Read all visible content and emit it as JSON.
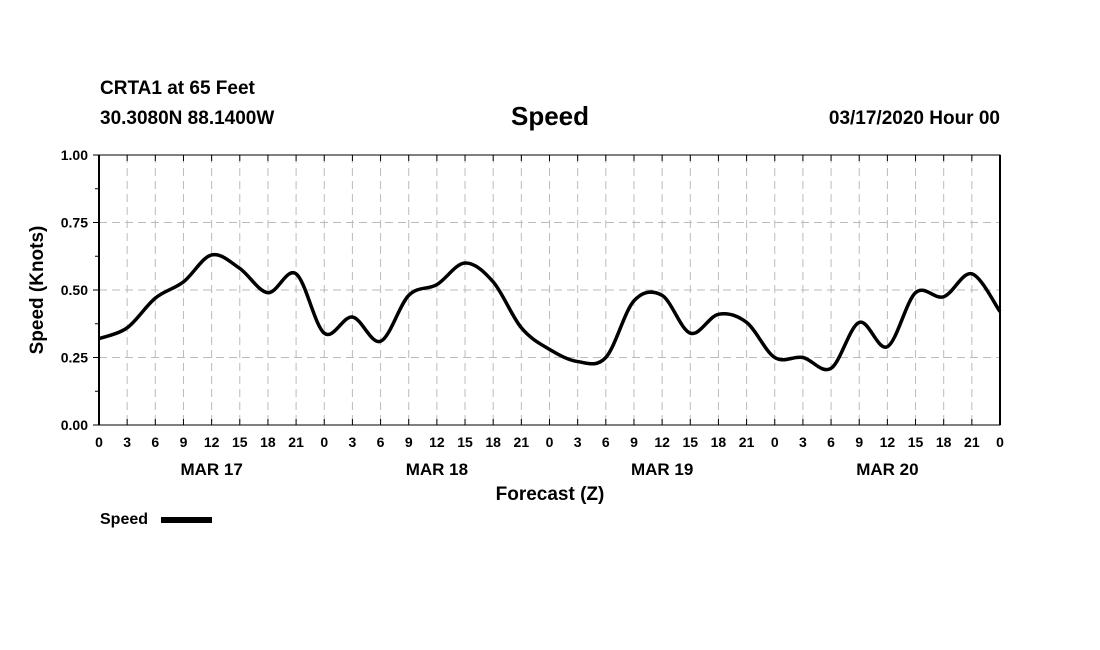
{
  "header": {
    "station": "CRTA1 at 65 Feet",
    "location": "30.3080N 88.1400W",
    "title": "Speed",
    "date": "03/17/2020 Hour 00"
  },
  "chart_data": {
    "type": "line",
    "title": "Speed",
    "xlabel": "Forecast (Z)",
    "ylabel": "Speed (Knots)",
    "ylim": [
      0,
      1
    ],
    "xlim": [
      0,
      96
    ],
    "grid": true,
    "yticks": [
      "0.00",
      "0.25",
      "0.50",
      "0.75",
      "1.00"
    ],
    "ytick_values": [
      0,
      0.25,
      0.5,
      0.75,
      1.0
    ],
    "xtick_labels": [
      "0",
      "3",
      "6",
      "9",
      "12",
      "15",
      "18",
      "21",
      "0",
      "3",
      "6",
      "9",
      "12",
      "15",
      "18",
      "21",
      "0",
      "3",
      "6",
      "9",
      "12",
      "15",
      "18",
      "21",
      "0",
      "3",
      "6",
      "9",
      "12",
      "15",
      "18",
      "21",
      "0"
    ],
    "day_labels": [
      {
        "label": "MAR 17",
        "hour": 12
      },
      {
        "label": "MAR 18",
        "hour": 36
      },
      {
        "label": "MAR 19",
        "hour": 60
      },
      {
        "label": "MAR 20",
        "hour": 84
      }
    ],
    "legend": {
      "label": "Speed",
      "placement": "bottom-left"
    },
    "series": [
      {
        "name": "Speed",
        "color": "#000000",
        "x": [
          0,
          3,
          6,
          9,
          12,
          15,
          18,
          21,
          24,
          27,
          30,
          33,
          36,
          39,
          42,
          45,
          48,
          51,
          54,
          57,
          60,
          63,
          66,
          69,
          72,
          75,
          78,
          81,
          84,
          87,
          90,
          93,
          96
        ],
        "values": [
          0.32,
          0.36,
          0.47,
          0.53,
          0.63,
          0.58,
          0.49,
          0.56,
          0.34,
          0.4,
          0.31,
          0.48,
          0.52,
          0.6,
          0.53,
          0.36,
          0.28,
          0.235,
          0.25,
          0.46,
          0.48,
          0.34,
          0.41,
          0.38,
          0.25,
          0.25,
          0.21,
          0.38,
          0.29,
          0.49,
          0.475,
          0.56,
          0.42
        ]
      }
    ]
  }
}
